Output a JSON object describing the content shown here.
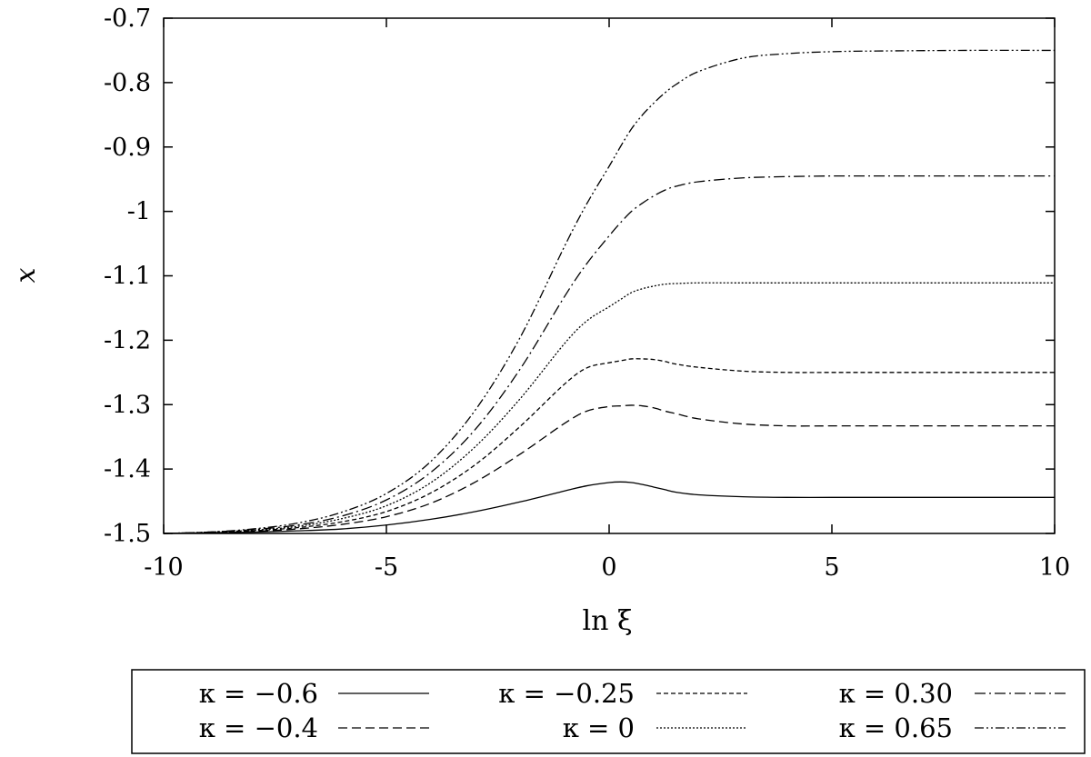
{
  "chart_data": {
    "type": "line",
    "title": "",
    "xlabel": "ln ξ",
    "ylabel": "x",
    "xlim": [
      -10,
      10
    ],
    "ylim": [
      -1.5,
      -0.7
    ],
    "xticks": [
      -10,
      -5,
      0,
      5,
      10
    ],
    "xtick_labels": [
      "-10",
      "-5",
      "0",
      "5",
      "10"
    ],
    "yticks": [
      -1.5,
      -1.4,
      -1.3,
      -1.2,
      -1.1,
      -1.0,
      -0.9,
      -0.8,
      -0.7
    ],
    "ytick_labels": [
      "-1.5",
      "-1.4",
      "-1.3",
      "-1.2",
      "-1.1",
      "-1",
      "-0.9",
      "-0.8",
      "-0.7"
    ],
    "grid": false,
    "legend_position": "bottom",
    "x": [
      -10,
      -9,
      -8,
      -7,
      -6,
      -5,
      -4,
      -3,
      -2,
      -1,
      -0.5,
      0,
      0.25,
      0.5,
      0.75,
      1,
      1.25,
      1.5,
      2,
      3,
      4,
      5,
      6,
      8,
      10
    ],
    "series": [
      {
        "name": "κ = −0.6",
        "dash": "",
        "values": [
          -1.5,
          -1.499,
          -1.498,
          -1.496,
          -1.493,
          -1.487,
          -1.478,
          -1.466,
          -1.451,
          -1.434,
          -1.426,
          -1.421,
          -1.42,
          -1.421,
          -1.424,
          -1.428,
          -1.432,
          -1.436,
          -1.44,
          -1.443,
          -1.444,
          -1.444,
          -1.444,
          -1.444,
          -1.444
        ]
      },
      {
        "name": "κ = −0.4",
        "dash": "10 5",
        "values": [
          -1.5,
          -1.499,
          -1.497,
          -1.493,
          -1.486,
          -1.474,
          -1.453,
          -1.42,
          -1.377,
          -1.329,
          -1.31,
          -1.303,
          -1.302,
          -1.301,
          -1.302,
          -1.305,
          -1.31,
          -1.314,
          -1.322,
          -1.33,
          -1.333,
          -1.333,
          -1.333,
          -1.333,
          -1.333
        ]
      },
      {
        "name": "κ = −0.25",
        "dash": "5 3",
        "values": [
          -1.5,
          -1.499,
          -1.496,
          -1.491,
          -1.482,
          -1.466,
          -1.437,
          -1.393,
          -1.334,
          -1.268,
          -1.243,
          -1.235,
          -1.232,
          -1.229,
          -1.229,
          -1.23,
          -1.233,
          -1.237,
          -1.242,
          -1.248,
          -1.25,
          -1.25,
          -1.25,
          -1.25,
          -1.25
        ]
      },
      {
        "name": "κ = 0",
        "dash": "2 2",
        "values": [
          -1.5,
          -1.498,
          -1.495,
          -1.489,
          -1.477,
          -1.457,
          -1.421,
          -1.365,
          -1.291,
          -1.205,
          -1.17,
          -1.148,
          -1.137,
          -1.126,
          -1.12,
          -1.116,
          -1.113,
          -1.112,
          -1.111,
          -1.111,
          -1.111,
          -1.111,
          -1.111,
          -1.111,
          -1.111
        ]
      },
      {
        "name": "κ = 0.30",
        "dash": "12 4 2 4",
        "values": [
          -1.5,
          -1.498,
          -1.494,
          -1.487,
          -1.473,
          -1.448,
          -1.405,
          -1.338,
          -1.245,
          -1.132,
          -1.081,
          -1.038,
          -1.018,
          -1.0,
          -0.987,
          -0.976,
          -0.967,
          -0.961,
          -0.954,
          -0.948,
          -0.946,
          -0.945,
          -0.945,
          -0.945,
          -0.945
        ]
      },
      {
        "name": "κ = 0.65",
        "dash": "10 3 2 3 2 3",
        "values": [
          -1.5,
          -1.498,
          -1.493,
          -1.484,
          -1.467,
          -1.438,
          -1.388,
          -1.308,
          -1.196,
          -1.054,
          -0.988,
          -0.93,
          -0.9,
          -0.872,
          -0.85,
          -0.832,
          -0.816,
          -0.803,
          -0.783,
          -0.762,
          -0.755,
          -0.752,
          -0.751,
          -0.75,
          -0.75
        ]
      }
    ]
  }
}
